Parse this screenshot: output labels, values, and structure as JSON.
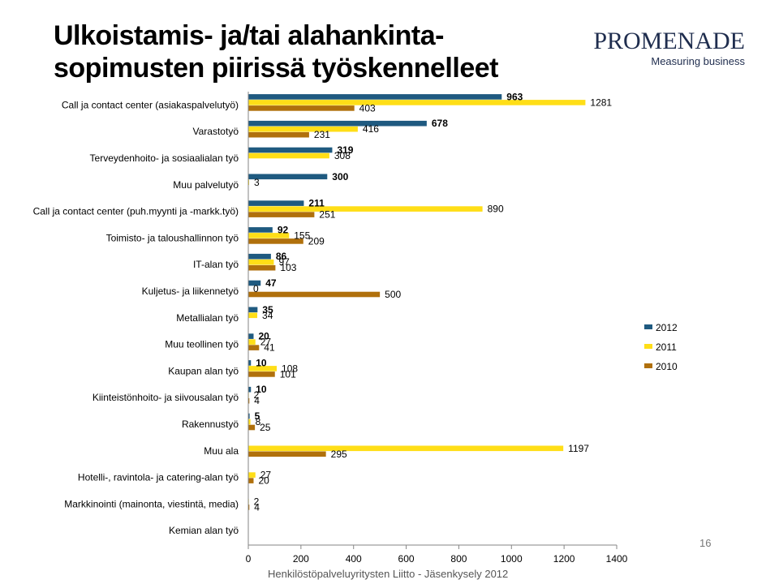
{
  "slide": {
    "title": "Ulkoistamis- ja/tai alahankinta-sopimusten piirissä työskennelleet",
    "logo_text": "PROMENADE",
    "logo_tagline": "Measuring business",
    "footer": "Henkilöstöpalveluyritysten Liitto - Jäsenkysely 2012",
    "page_number": "16"
  },
  "chart_data": {
    "type": "bar",
    "orientation": "horizontal",
    "categories": [
      "Call ja contact center (asiakaspalvelutyö)",
      "Varastotyö",
      "Terveydenhoito- ja sosiaalialan työ",
      "Muu palvelutyö",
      "Call ja contact center (puh.myynti ja -markk.työ)",
      "Toimisto- ja taloushallinnon työ",
      "IT-alan työ",
      "Kuljetus- ja liikennetyö",
      "Metallialan työ",
      "Muu teollinen työ",
      "Kaupan alan työ",
      "Kiinteistönhoito- ja siivousalan työ",
      "Rakennustyö",
      "Muu ala",
      "Hotelli-, ravintola- ja catering-alan työ",
      "Markkinointi (mainonta, viestintä, media)",
      "Kemian alan työ"
    ],
    "series": [
      {
        "name": "2012",
        "color": "#1f5a80",
        "values": [
          963,
          678,
          319,
          300,
          211,
          92,
          86,
          47,
          35,
          20,
          10,
          10,
          5,
          null,
          null,
          null,
          null
        ]
      },
      {
        "name": "2011",
        "color": "#ffde17",
        "values": [
          1281,
          416,
          308,
          3,
          890,
          155,
          97,
          0,
          34,
          27,
          108,
          2,
          8,
          1197,
          27,
          2,
          null
        ]
      },
      {
        "name": "2010",
        "color": "#b0700c",
        "values": [
          403,
          231,
          null,
          null,
          251,
          209,
          103,
          500,
          null,
          41,
          101,
          4,
          25,
          295,
          20,
          4,
          null
        ]
      }
    ],
    "labels": [
      [
        "963",
        "1281",
        "403"
      ],
      [
        "678",
        "416",
        "231"
      ],
      [
        "319",
        "308",
        ""
      ],
      [
        "300",
        "3",
        ""
      ],
      [
        "211",
        "890",
        "251"
      ],
      [
        "92",
        "155",
        "209"
      ],
      [
        "86",
        "97",
        "103"
      ],
      [
        "47",
        "0",
        "500"
      ],
      [
        "35",
        "34",
        ""
      ],
      [
        "20",
        "27",
        "41"
      ],
      [
        "10",
        "108",
        "101"
      ],
      [
        "10",
        "2",
        "4"
      ],
      [
        "5",
        "8",
        "25"
      ],
      [
        "",
        "1197",
        "295"
      ],
      [
        "",
        "27",
        "20"
      ],
      [
        "",
        "2",
        "4"
      ],
      [
        "",
        "",
        ""
      ]
    ],
    "xlim": [
      0,
      1400
    ],
    "xticks": [
      "0",
      "200",
      "400",
      "600",
      "800",
      "1000",
      "1200",
      "1400"
    ],
    "legend": [
      "2012",
      "2011",
      "2010"
    ],
    "legend_position": "right"
  }
}
